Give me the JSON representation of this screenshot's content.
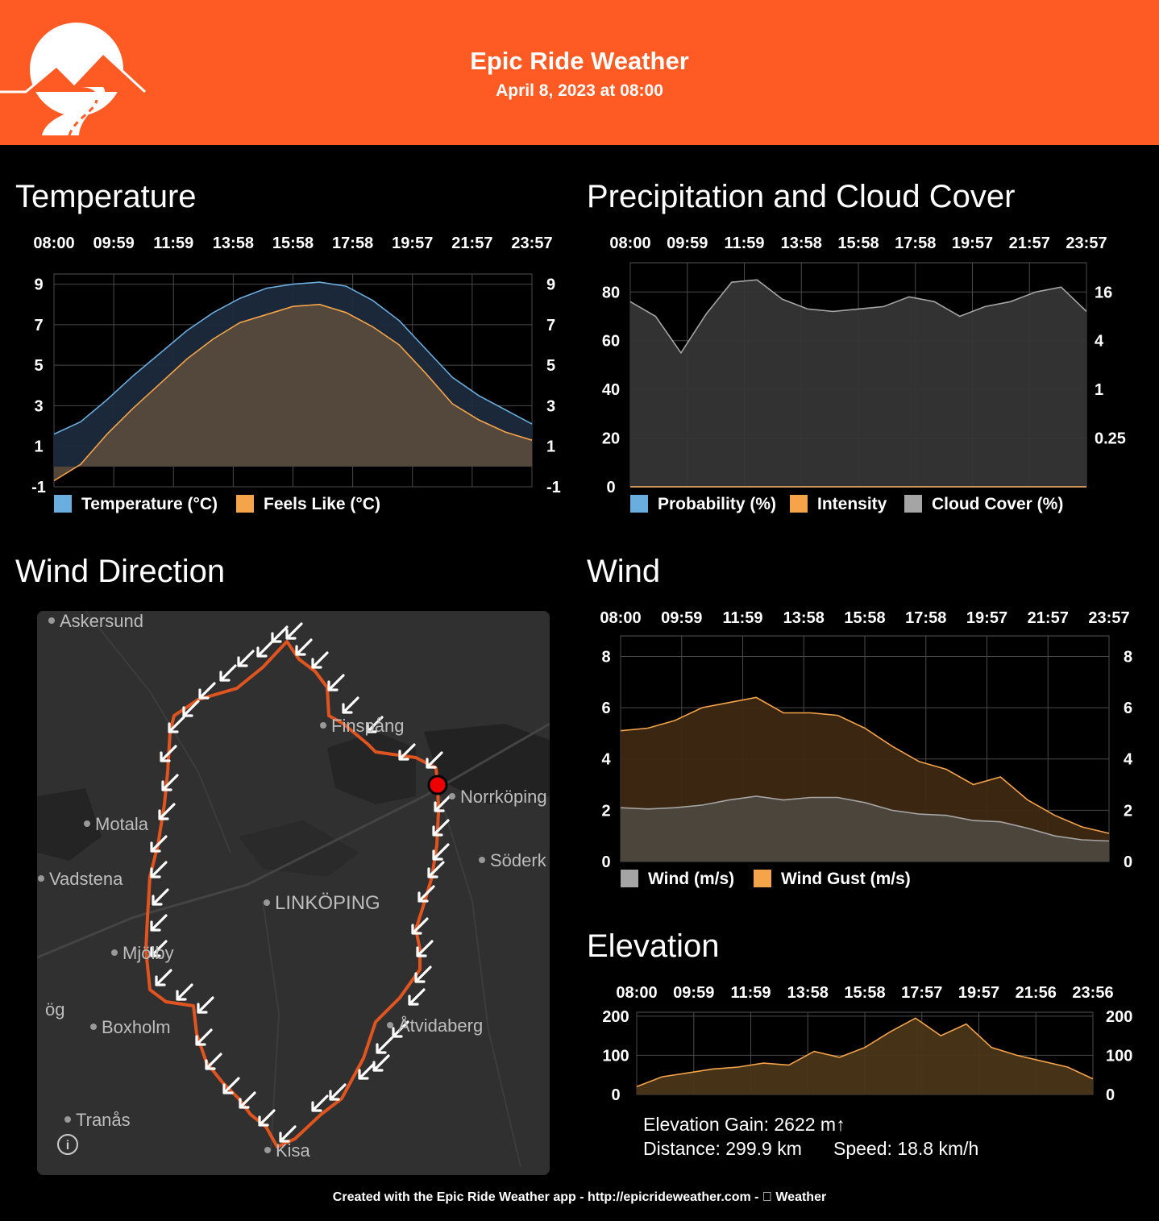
{
  "header": {
    "title": "Epic Ride Weather",
    "date": "April 8, 2023 at 08:00",
    "accent_color": "#fe5a24"
  },
  "sections": {
    "temperature": "Temperature",
    "precipitation": "Precipitation and Cloud Cover",
    "wind_direction": "Wind Direction",
    "wind": "Wind",
    "elevation": "Elevation"
  },
  "chart_data": [
    {
      "id": "temperature",
      "type": "area",
      "x_ticks": [
        "08:00",
        "09:59",
        "11:59",
        "13:58",
        "15:58",
        "17:58",
        "19:57",
        "21:57",
        "23:57"
      ],
      "y_ticks": [
        -1,
        1,
        3,
        5,
        7,
        9
      ],
      "ylim": [
        -1,
        9.5
      ],
      "grid": true,
      "legend_position": "bottom",
      "series": [
        {
          "name": "Temperature (°C)",
          "color": "#6aaee0",
          "fill": "#1b2a3c",
          "values": [
            1.6,
            2.2,
            3.3,
            4.5,
            5.6,
            6.7,
            7.6,
            8.3,
            8.8,
            9.0,
            9.1,
            8.9,
            8.2,
            7.2,
            5.8,
            4.4,
            3.5,
            2.8,
            2.1
          ]
        },
        {
          "name": "Feels Like (°C)",
          "color": "#f6a44a",
          "fill": "#574a3c",
          "values": [
            -0.7,
            0.1,
            1.6,
            2.9,
            4.1,
            5.3,
            6.3,
            7.1,
            7.5,
            7.9,
            8.0,
            7.6,
            6.9,
            6.0,
            4.6,
            3.1,
            2.3,
            1.7,
            1.3
          ]
        }
      ]
    },
    {
      "id": "precipitation",
      "type": "area",
      "x_ticks": [
        "08:00",
        "09:59",
        "11:59",
        "13:58",
        "15:58",
        "17:58",
        "19:57",
        "21:57",
        "23:57"
      ],
      "y_ticks": [
        0,
        20,
        40,
        60,
        80
      ],
      "ylim": [
        0,
        92
      ],
      "y2_ticks": [
        "0.25",
        "1",
        "4",
        "16"
      ],
      "grid": true,
      "legend_position": "bottom",
      "series": [
        {
          "name": "Probability (%)",
          "color": "#6aaee0",
          "values": [
            0,
            0,
            0,
            0,
            0,
            0,
            0,
            0,
            0,
            0,
            0,
            0,
            0,
            0,
            0,
            0,
            0,
            0,
            0
          ]
        },
        {
          "name": "Intensity",
          "color": "#f6a44a",
          "values": [
            0,
            0,
            0,
            0,
            0,
            0,
            0,
            0,
            0,
            0,
            0,
            0,
            0,
            0,
            0,
            0,
            0,
            0,
            0
          ]
        },
        {
          "name": "Cloud Cover (%)",
          "color": "#a5a5a5",
          "fill": "#353535",
          "values": [
            76,
            70,
            55,
            71,
            84,
            85,
            77,
            73,
            72,
            73,
            74,
            78,
            76,
            70,
            74,
            76,
            80,
            82,
            72
          ]
        }
      ]
    },
    {
      "id": "wind",
      "type": "area",
      "x_ticks": [
        "08:00",
        "09:59",
        "11:59",
        "13:58",
        "15:58",
        "17:58",
        "19:57",
        "21:57",
        "23:57"
      ],
      "y_ticks": [
        0,
        2,
        4,
        6,
        8
      ],
      "ylim": [
        0,
        8.8
      ],
      "grid": true,
      "legend_position": "bottom",
      "series": [
        {
          "name": "Wind (m/s)",
          "color": "#a5a5a5",
          "fill": "#4c473f",
          "values": [
            2.1,
            2.05,
            2.1,
            2.2,
            2.4,
            2.55,
            2.4,
            2.5,
            2.5,
            2.3,
            2.0,
            1.85,
            1.8,
            1.6,
            1.55,
            1.3,
            1.0,
            0.85,
            0.8
          ]
        },
        {
          "name": "Wind Gust (m/s)",
          "color": "#f6a44a",
          "fill": "#3d2812",
          "values": [
            5.1,
            5.2,
            5.5,
            6.0,
            6.2,
            6.4,
            5.8,
            5.8,
            5.7,
            5.2,
            4.5,
            3.9,
            3.6,
            3.0,
            3.3,
            2.4,
            1.8,
            1.35,
            1.1
          ]
        }
      ]
    },
    {
      "id": "elevation",
      "type": "area",
      "x_ticks": [
        "08:00",
        "09:59",
        "11:59",
        "13:58",
        "15:58",
        "17:57",
        "19:57",
        "21:56",
        "23:56"
      ],
      "y_ticks": [
        0,
        100,
        200
      ],
      "ylim": [
        0,
        210
      ],
      "grid": true,
      "series": [
        {
          "name": "Elevation",
          "color": "#f6a44a",
          "fill": "#4a3618",
          "values": [
            20,
            45,
            55,
            65,
            70,
            80,
            75,
            110,
            95,
            120,
            160,
            195,
            150,
            180,
            120,
            100,
            85,
            70,
            40
          ]
        }
      ]
    }
  ],
  "legends": {
    "temperature": [
      "Temperature (°C)",
      "Feels Like (°C)"
    ],
    "precipitation": [
      "Probability (%)",
      "Intensity",
      "Cloud Cover (%)"
    ],
    "wind": [
      "Wind (m/s)",
      "Wind Gust (m/s)"
    ]
  },
  "map": {
    "places": [
      "Askersund",
      "Finspång",
      "Norrköping",
      "Motala",
      "Söderk",
      "Vadstena",
      "LINKÖPING",
      "Mjölby",
      "ög",
      "Boxholm",
      "Åtvidaberg",
      "Tranås",
      "Kisa"
    ],
    "info_icon": "info-icon",
    "route_color": "#e0541f"
  },
  "elevation_info": {
    "gain": "Elevation Gain: 2622 m↑",
    "distance": "Distance: 299.9 km",
    "speed": "Speed: 18.8 km/h"
  },
  "footer": "Created with the Epic Ride Weather app - http://epicrideweather.com -  Weather"
}
